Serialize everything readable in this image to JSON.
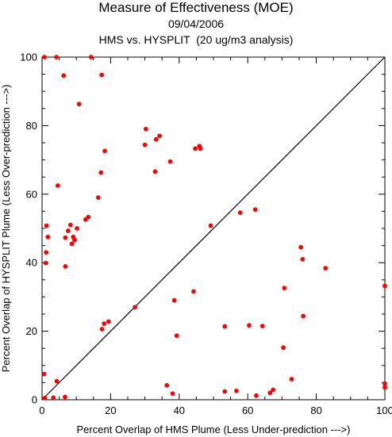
{
  "chart_data": {
    "type": "scatter",
    "title": "Measure of Effectiveness (MOE)",
    "subtitle_date": "09/04/2006",
    "subtitle_analysis": "HMS vs. HYSPLIT  (20 ug/m3 analysis)",
    "xlabel": "Percent Overlap of HMS Plume (Less Under-prediction --->)",
    "ylabel": "Percent Overlap of HYSPLIT Plume (Less Over-prediction --->)",
    "xlim": [
      0,
      100
    ],
    "ylim": [
      0,
      100
    ],
    "xticks": [
      "0",
      "20",
      "40",
      "60",
      "80",
      "100"
    ],
    "yticks": [
      "0",
      "20",
      "40",
      "60",
      "80",
      "100"
    ],
    "reference_line": "diagonal y = x",
    "grid": false,
    "point_color": "#ff0000",
    "points": [
      [
        0.7,
        100
      ],
      [
        4.2,
        100
      ],
      [
        14.3,
        100
      ],
      [
        6.3,
        94.6
      ],
      [
        17.4,
        94.8
      ],
      [
        10.8,
        86.3
      ],
      [
        30.3,
        79
      ],
      [
        30,
        74.4
      ],
      [
        34.3,
        77
      ],
      [
        33.3,
        76
      ],
      [
        45.9,
        74
      ],
      [
        46.2,
        73.3
      ],
      [
        44.7,
        73.3
      ],
      [
        18.3,
        72.6
      ],
      [
        37.4,
        69.5
      ],
      [
        33,
        66.6
      ],
      [
        17.2,
        66.3
      ],
      [
        4.6,
        62.5
      ],
      [
        16.4,
        59
      ],
      [
        57.8,
        54.6
      ],
      [
        62.2,
        55.5
      ],
      [
        13.5,
        53.3
      ],
      [
        12.7,
        52.6
      ],
      [
        1.3,
        50.8
      ],
      [
        8.3,
        51
      ],
      [
        7.6,
        49.3
      ],
      [
        10.2,
        50
      ],
      [
        49.2,
        50.8
      ],
      [
        1.7,
        47.5
      ],
      [
        6.8,
        47.3
      ],
      [
        9.1,
        47.5
      ],
      [
        9.5,
        46.6
      ],
      [
        8.7,
        45.5
      ],
      [
        1.2,
        43
      ],
      [
        1.1,
        39.9
      ],
      [
        6.8,
        38.9
      ],
      [
        75.5,
        44.5
      ],
      [
        76,
        41
      ],
      [
        82.7,
        38.4
      ],
      [
        70.7,
        32.6
      ],
      [
        100,
        33.2
      ],
      [
        44.2,
        31.6
      ],
      [
        38.6,
        29
      ],
      [
        27.1,
        27
      ],
      [
        76.2,
        24.4
      ],
      [
        19.4,
        22.8
      ],
      [
        18.1,
        22.2
      ],
      [
        17.5,
        20.6
      ],
      [
        53.3,
        21.4
      ],
      [
        60.4,
        21.7
      ],
      [
        64.3,
        21.5
      ],
      [
        39.3,
        18.7
      ],
      [
        70.4,
        15.2
      ],
      [
        0.6,
        7.5
      ],
      [
        4.3,
        5.4
      ],
      [
        72.8,
        6
      ],
      [
        36.4,
        4.2
      ],
      [
        100,
        4.7
      ],
      [
        100,
        3.6
      ],
      [
        53.3,
        2.4
      ],
      [
        56.7,
        2.6
      ],
      [
        67.4,
        2.9
      ],
      [
        66.5,
        2
      ],
      [
        38.1,
        1.8
      ],
      [
        62.5,
        1.2
      ],
      [
        0.8,
        0.5
      ],
      [
        3.3,
        0.6
      ],
      [
        6.7,
        0.8
      ]
    ]
  }
}
